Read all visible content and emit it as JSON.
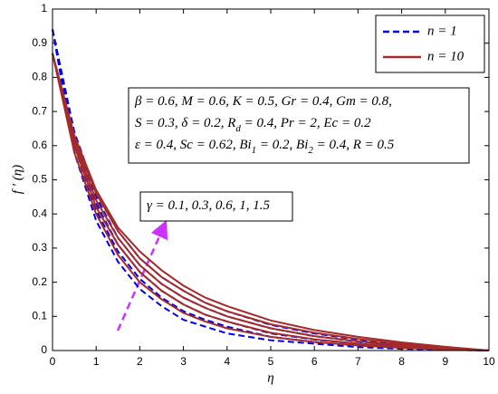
{
  "chart_data": {
    "type": "line",
    "xlabel": "η",
    "ylabel": "f ′ (η)",
    "x": [
      0,
      0.5,
      1,
      1.5,
      2,
      2.5,
      3,
      3.5,
      4,
      5,
      6,
      7,
      8,
      9,
      10
    ],
    "xlim": [
      0,
      10
    ],
    "ylim": [
      0,
      1
    ],
    "xticks": [
      0,
      1,
      2,
      3,
      4,
      5,
      6,
      7,
      8,
      9,
      10
    ],
    "yticks": [
      0,
      0.1,
      0.2,
      0.3,
      0.4,
      0.5,
      0.6,
      0.7,
      0.8,
      0.9,
      1
    ],
    "grid": false,
    "legend": "upper right",
    "series": [
      {
        "name": "n = 1",
        "color": "#0000ee",
        "line_style": "dashed",
        "values": [
          [
            0.94,
            0.58,
            0.38,
            0.26,
            0.18,
            0.13,
            0.09,
            0.07,
            0.05,
            0.03,
            0.02,
            0.01,
            0.005,
            0.002,
            0
          ],
          [
            0.94,
            0.6,
            0.41,
            0.29,
            0.21,
            0.155,
            0.115,
            0.09,
            0.07,
            0.04,
            0.025,
            0.015,
            0.008,
            0.003,
            0
          ],
          [
            0.94,
            0.62,
            0.43,
            0.31,
            0.23,
            0.175,
            0.135,
            0.105,
            0.085,
            0.05,
            0.032,
            0.02,
            0.011,
            0.005,
            0
          ],
          [
            0.94,
            0.63,
            0.45,
            0.33,
            0.25,
            0.195,
            0.155,
            0.125,
            0.1,
            0.065,
            0.042,
            0.026,
            0.015,
            0.007,
            0
          ],
          [
            0.94,
            0.64,
            0.46,
            0.35,
            0.27,
            0.215,
            0.175,
            0.14,
            0.115,
            0.075,
            0.05,
            0.032,
            0.018,
            0.008,
            0
          ]
        ]
      },
      {
        "name": "n = 10",
        "color": "#a52a2a",
        "line_style": "solid",
        "values": [
          [
            0.87,
            0.58,
            0.4,
            0.28,
            0.2,
            0.15,
            0.11,
            0.085,
            0.065,
            0.04,
            0.025,
            0.015,
            0.008,
            0.003,
            0
          ],
          [
            0.87,
            0.6,
            0.42,
            0.31,
            0.23,
            0.175,
            0.135,
            0.105,
            0.085,
            0.052,
            0.033,
            0.02,
            0.011,
            0.005,
            0
          ],
          [
            0.87,
            0.61,
            0.44,
            0.33,
            0.25,
            0.195,
            0.155,
            0.125,
            0.1,
            0.065,
            0.042,
            0.027,
            0.015,
            0.007,
            0
          ],
          [
            0.87,
            0.62,
            0.46,
            0.35,
            0.27,
            0.215,
            0.175,
            0.14,
            0.115,
            0.077,
            0.052,
            0.034,
            0.02,
            0.009,
            0
          ],
          [
            0.87,
            0.63,
            0.47,
            0.36,
            0.29,
            0.235,
            0.19,
            0.155,
            0.13,
            0.088,
            0.06,
            0.04,
            0.024,
            0.011,
            0
          ]
        ]
      }
    ],
    "annotations": [
      {
        "lines": [
          [
            "β = 0.6, M = 0.6, K = 0.5, Gr = 0.4, Gm = 0.8,"
          ],
          [
            "S = 0.3, δ = 0.2, R",
            {
              "sub": "d"
            },
            " = 0.4, Pr = 2, Ec = 0.2"
          ],
          [
            "ε = 0.4, Sc = 0.62, Bi",
            {
              "sub": "1"
            },
            " = 0.2, Bi",
            {
              "sub": "2"
            },
            " = 0.4, R = 0.5"
          ]
        ]
      },
      {
        "lines": [
          [
            "γ = 0.1, 0.3, 0.6, 1, 1.5"
          ]
        ]
      }
    ]
  }
}
